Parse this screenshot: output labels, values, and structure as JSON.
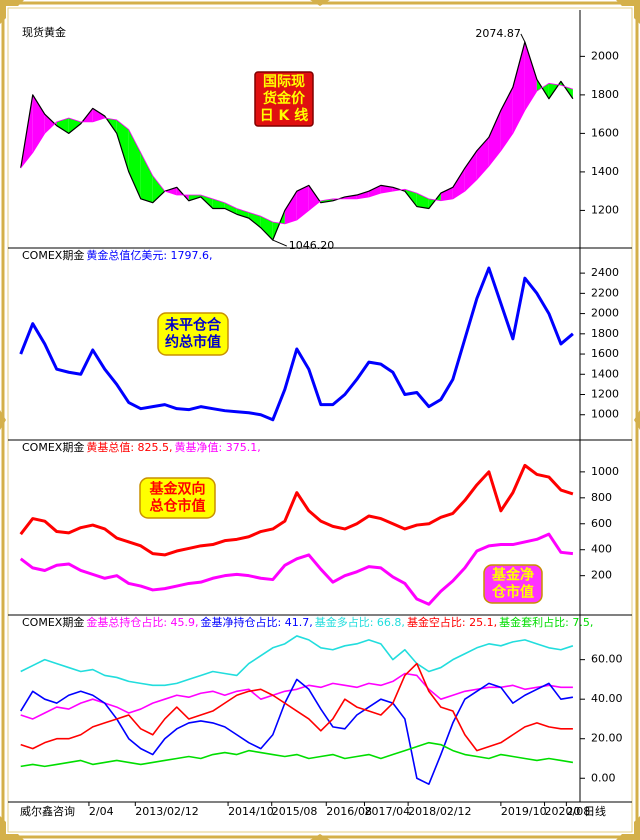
{
  "title": "现货黄金",
  "source": "威尔鑫咨询",
  "chart_data": [
    {
      "type": "line",
      "title": "现货黄金",
      "x": [
        2011.0,
        2011.22,
        2011.44,
        2011.66,
        2011.88,
        2012.1,
        2012.32,
        2012.54,
        2012.76,
        2012.98,
        2013.2,
        2013.42,
        2013.64,
        2013.86,
        2014.08,
        2014.3,
        2014.52,
        2014.74,
        2014.96,
        2015.18,
        2015.4,
        2015.62,
        2015.84,
        2016.06,
        2016.28,
        2016.5,
        2016.72,
        2016.94,
        2017.16,
        2017.38,
        2017.6,
        2017.82,
        2018.04,
        2018.26,
        2018.48,
        2018.7,
        2018.92,
        2019.14,
        2019.36,
        2019.58,
        2019.8,
        2020.02,
        2020.24,
        2020.46,
        2020.68,
        2020.9,
        2021.12
      ],
      "xlim": [
        2010.95,
        2021.25
      ],
      "ylim": [
        1010,
        2085
      ],
      "yticks": [
        1200,
        1400,
        1600,
        1800,
        2000
      ],
      "series": [
        {
          "color": "#000000",
          "values": [
            1420,
            1800,
            1700,
            1640,
            1600,
            1650,
            1730,
            1690,
            1600,
            1400,
            1260,
            1240,
            1300,
            1320,
            1250,
            1270,
            1210,
            1210,
            1180,
            1160,
            1110,
            1046.2,
            1200,
            1300,
            1330,
            1240,
            1250,
            1270,
            1280,
            1300,
            1330,
            1320,
            1300,
            1220,
            1210,
            1290,
            1320,
            1420,
            1510,
            1580,
            1720,
            1840,
            2074.87,
            1880,
            1780,
            1870,
            1780
          ]
        },
        {
          "color": "#ff00ff",
          "values": [
            1420,
            1500,
            1600,
            1660,
            1680,
            1660,
            1660,
            1680,
            1670,
            1620,
            1500,
            1380,
            1300,
            1280,
            1280,
            1280,
            1260,
            1240,
            1210,
            1190,
            1170,
            1140,
            1130,
            1150,
            1200,
            1250,
            1260,
            1260,
            1260,
            1270,
            1290,
            1300,
            1310,
            1290,
            1260,
            1250,
            1260,
            1300,
            1360,
            1430,
            1510,
            1600,
            1720,
            1820,
            1860,
            1850,
            1830
          ]
        }
      ],
      "band_fill": {
        "above": "#ff00ff",
        "below": "#00ff00"
      },
      "annotations": [
        {
          "value": 2074.87,
          "label": "2074.87"
        },
        {
          "value": 1046.2,
          "label": "1046.20"
        }
      ],
      "callouts": [
        {
          "lines": [
            "国际现",
            "货金价",
            "日 K 线"
          ],
          "fill": "#e01010",
          "text_color": "#ffff00"
        }
      ]
    },
    {
      "type": "line",
      "title": "COMEX期金",
      "x": [
        2011.0,
        2011.22,
        2011.44,
        2011.66,
        2011.88,
        2012.1,
        2012.32,
        2012.54,
        2012.76,
        2012.98,
        2013.2,
        2013.42,
        2013.64,
        2013.86,
        2014.08,
        2014.3,
        2014.52,
        2014.74,
        2014.96,
        2015.18,
        2015.4,
        2015.62,
        2015.84,
        2016.06,
        2016.28,
        2016.5,
        2016.72,
        2016.94,
        2017.16,
        2017.38,
        2017.6,
        2017.82,
        2018.04,
        2018.26,
        2018.48,
        2018.7,
        2018.92,
        2019.14,
        2019.36,
        2019.58,
        2019.8,
        2020.02,
        2020.24,
        2020.46,
        2020.68,
        2020.9,
        2021.12
      ],
      "xlim": [
        2010.95,
        2021.25
      ],
      "ylim": [
        770,
        2510
      ],
      "yticks": [
        1000,
        1200,
        1400,
        1600,
        1800,
        2000,
        2200,
        2400
      ],
      "series": [
        {
          "name": "黄金总值亿美元: 1797.6,",
          "color": "#0000ff",
          "values": [
            1600,
            1900,
            1700,
            1450,
            1420,
            1400,
            1640,
            1450,
            1300,
            1120,
            1060,
            1080,
            1100,
            1060,
            1050,
            1080,
            1060,
            1040,
            1030,
            1020,
            1000,
            950,
            1250,
            1650,
            1450,
            1100,
            1100,
            1200,
            1350,
            1520,
            1500,
            1420,
            1200,
            1220,
            1080,
            1150,
            1350,
            1750,
            2150,
            2450,
            2100,
            1750,
            2350,
            2200,
            2000,
            1700,
            1800
          ]
        }
      ],
      "callouts": [
        {
          "lines": [
            "未平仓合",
            "约总市值"
          ],
          "fill": "#ffff00",
          "text_color": "#0000cc"
        }
      ]
    },
    {
      "type": "line",
      "title": "COMEX期金",
      "x": [
        2011.0,
        2011.22,
        2011.44,
        2011.66,
        2011.88,
        2012.1,
        2012.32,
        2012.54,
        2012.76,
        2012.98,
        2013.2,
        2013.42,
        2013.64,
        2013.86,
        2014.08,
        2014.3,
        2014.52,
        2014.74,
        2014.96,
        2015.18,
        2015.4,
        2015.62,
        2015.84,
        2016.06,
        2016.28,
        2016.5,
        2016.72,
        2016.94,
        2017.16,
        2017.38,
        2017.6,
        2017.82,
        2018.04,
        2018.26,
        2018.48,
        2018.7,
        2018.92,
        2019.14,
        2019.36,
        2019.58,
        2019.8,
        2020.02,
        2020.24,
        2020.46,
        2020.68,
        2020.9,
        2021.12
      ],
      "xlim": [
        2010.95,
        2021.25
      ],
      "ylim": [
        -80,
        1130
      ],
      "yticks": [
        200,
        400,
        600,
        800,
        1000
      ],
      "series": [
        {
          "name": "黄基总值: 825.5,",
          "color": "#ff0000",
          "values": [
            520,
            640,
            620,
            540,
            530,
            570,
            590,
            560,
            490,
            460,
            430,
            370,
            360,
            390,
            410,
            430,
            440,
            470,
            480,
            500,
            540,
            560,
            620,
            840,
            700,
            620,
            580,
            560,
            600,
            660,
            640,
            600,
            560,
            590,
            600,
            650,
            680,
            780,
            900,
            1000,
            700,
            840,
            1050,
            980,
            960,
            860,
            830
          ]
        },
        {
          "name": "黄基净值: 375.1,",
          "color": "#ff00ff",
          "values": [
            330,
            260,
            240,
            280,
            290,
            240,
            210,
            180,
            200,
            140,
            120,
            90,
            100,
            120,
            140,
            150,
            180,
            200,
            210,
            200,
            180,
            170,
            280,
            330,
            360,
            250,
            150,
            200,
            230,
            270,
            260,
            190,
            140,
            20,
            -20,
            80,
            160,
            260,
            390,
            430,
            440,
            440,
            460,
            480,
            520,
            380,
            370
          ]
        }
      ],
      "callouts": [
        {
          "lines": [
            "基金双向",
            "总仓市值"
          ],
          "fill": "#ffff00",
          "text_color": "#ff0000"
        },
        {
          "lines": [
            "基金净",
            "仓市值"
          ],
          "fill": "#ff33ff",
          "text_color": "#ffff00"
        }
      ]
    },
    {
      "type": "line",
      "title": "COMEX期金",
      "x": [
        2011.0,
        2011.22,
        2011.44,
        2011.66,
        2011.88,
        2012.1,
        2012.32,
        2012.54,
        2012.76,
        2012.98,
        2013.2,
        2013.42,
        2013.64,
        2013.86,
        2014.08,
        2014.3,
        2014.52,
        2014.74,
        2014.96,
        2015.18,
        2015.4,
        2015.62,
        2015.84,
        2016.06,
        2016.28,
        2016.5,
        2016.72,
        2016.94,
        2017.16,
        2017.38,
        2017.6,
        2017.82,
        2018.04,
        2018.26,
        2018.48,
        2018.7,
        2018.92,
        2019.14,
        2019.36,
        2019.58,
        2019.8,
        2020.02,
        2020.24,
        2020.46,
        2020.68,
        2020.9,
        2021.12
      ],
      "xlim": [
        2010.95,
        2021.25
      ],
      "ylim": [
        -11,
        75
      ],
      "yticks": [
        {
          "value": 0,
          "label": "0.00"
        },
        {
          "value": 20,
          "label": "20.00"
        },
        {
          "value": 40,
          "label": "40.00"
        },
        {
          "value": 60,
          "label": "60.00"
        }
      ],
      "xticks": [
        {
          "value": 2012.25,
          "label": "2/04"
        },
        {
          "value": 2013.1,
          "label": "2013/02/12"
        },
        {
          "value": 2014.8,
          "label": "2014/10"
        },
        {
          "value": 2015.6,
          "label": "2015/08"
        },
        {
          "value": 2016.6,
          "label": "2016/08"
        },
        {
          "value": 2017.3,
          "label": "2017/04"
        },
        {
          "value": 2018.1,
          "label": "2018/02/12"
        },
        {
          "value": 2019.8,
          "label": "2019/10"
        },
        {
          "value": 2020.6,
          "label": "2020/08"
        },
        {
          "value": 2021.0,
          "label": "20"
        }
      ],
      "period_label": "日线",
      "series": [
        {
          "name": "金基总持仓占比: 45.9,",
          "color": "#ff00ff",
          "values": [
            32,
            30,
            33,
            36,
            35,
            38,
            40,
            38,
            36,
            33,
            35,
            38,
            40,
            42,
            41,
            43,
            44,
            42,
            44,
            45,
            40,
            42,
            44,
            45,
            47,
            46,
            48,
            47,
            46,
            48,
            47,
            49,
            53,
            52,
            45,
            40,
            42,
            44,
            45,
            46,
            46,
            47,
            45,
            46,
            47,
            46,
            46
          ]
        },
        {
          "name": "金基净持仓占比: 41.7,",
          "color": "#0000ff",
          "values": [
            34,
            44,
            40,
            38,
            42,
            44,
            42,
            38,
            30,
            20,
            15,
            12,
            20,
            25,
            28,
            29,
            28,
            26,
            22,
            18,
            15,
            22,
            38,
            50,
            45,
            35,
            26,
            25,
            32,
            36,
            40,
            38,
            30,
            0,
            -3,
            12,
            28,
            40,
            44,
            48,
            46,
            38,
            42,
            45,
            48,
            40,
            41
          ]
        },
        {
          "name": "基金多占比: 66.8,",
          "color": "#22dddd",
          "values": [
            54,
            57,
            60,
            58,
            56,
            54,
            55,
            52,
            51,
            49,
            48,
            47,
            47,
            48,
            50,
            52,
            54,
            53,
            52,
            58,
            62,
            66,
            68,
            72,
            70,
            66,
            65,
            67,
            68,
            70,
            68,
            60,
            65,
            58,
            54,
            56,
            60,
            63,
            66,
            68,
            67,
            69,
            70,
            68,
            66,
            65,
            67
          ]
        },
        {
          "name": "基金空占比: 25.1,",
          "color": "#ff0000",
          "values": [
            17,
            15,
            18,
            20,
            20,
            22,
            26,
            28,
            30,
            32,
            25,
            22,
            30,
            36,
            30,
            32,
            34,
            38,
            42,
            44,
            45,
            42,
            38,
            34,
            30,
            24,
            30,
            40,
            36,
            34,
            32,
            38,
            52,
            58,
            44,
            36,
            34,
            22,
            14,
            16,
            18,
            22,
            26,
            28,
            26,
            25,
            25
          ]
        },
        {
          "name": "基金套利占比: 7.5,",
          "color": "#00dd00",
          "values": [
            6,
            7,
            6,
            7,
            8,
            9,
            7,
            8,
            9,
            8,
            7,
            8,
            9,
            10,
            11,
            10,
            12,
            13,
            12,
            14,
            13,
            12,
            11,
            12,
            10,
            11,
            12,
            10,
            11,
            12,
            10,
            12,
            14,
            16,
            18,
            17,
            14,
            12,
            11,
            10,
            12,
            11,
            10,
            9,
            10,
            9,
            8
          ]
        }
      ]
    }
  ]
}
